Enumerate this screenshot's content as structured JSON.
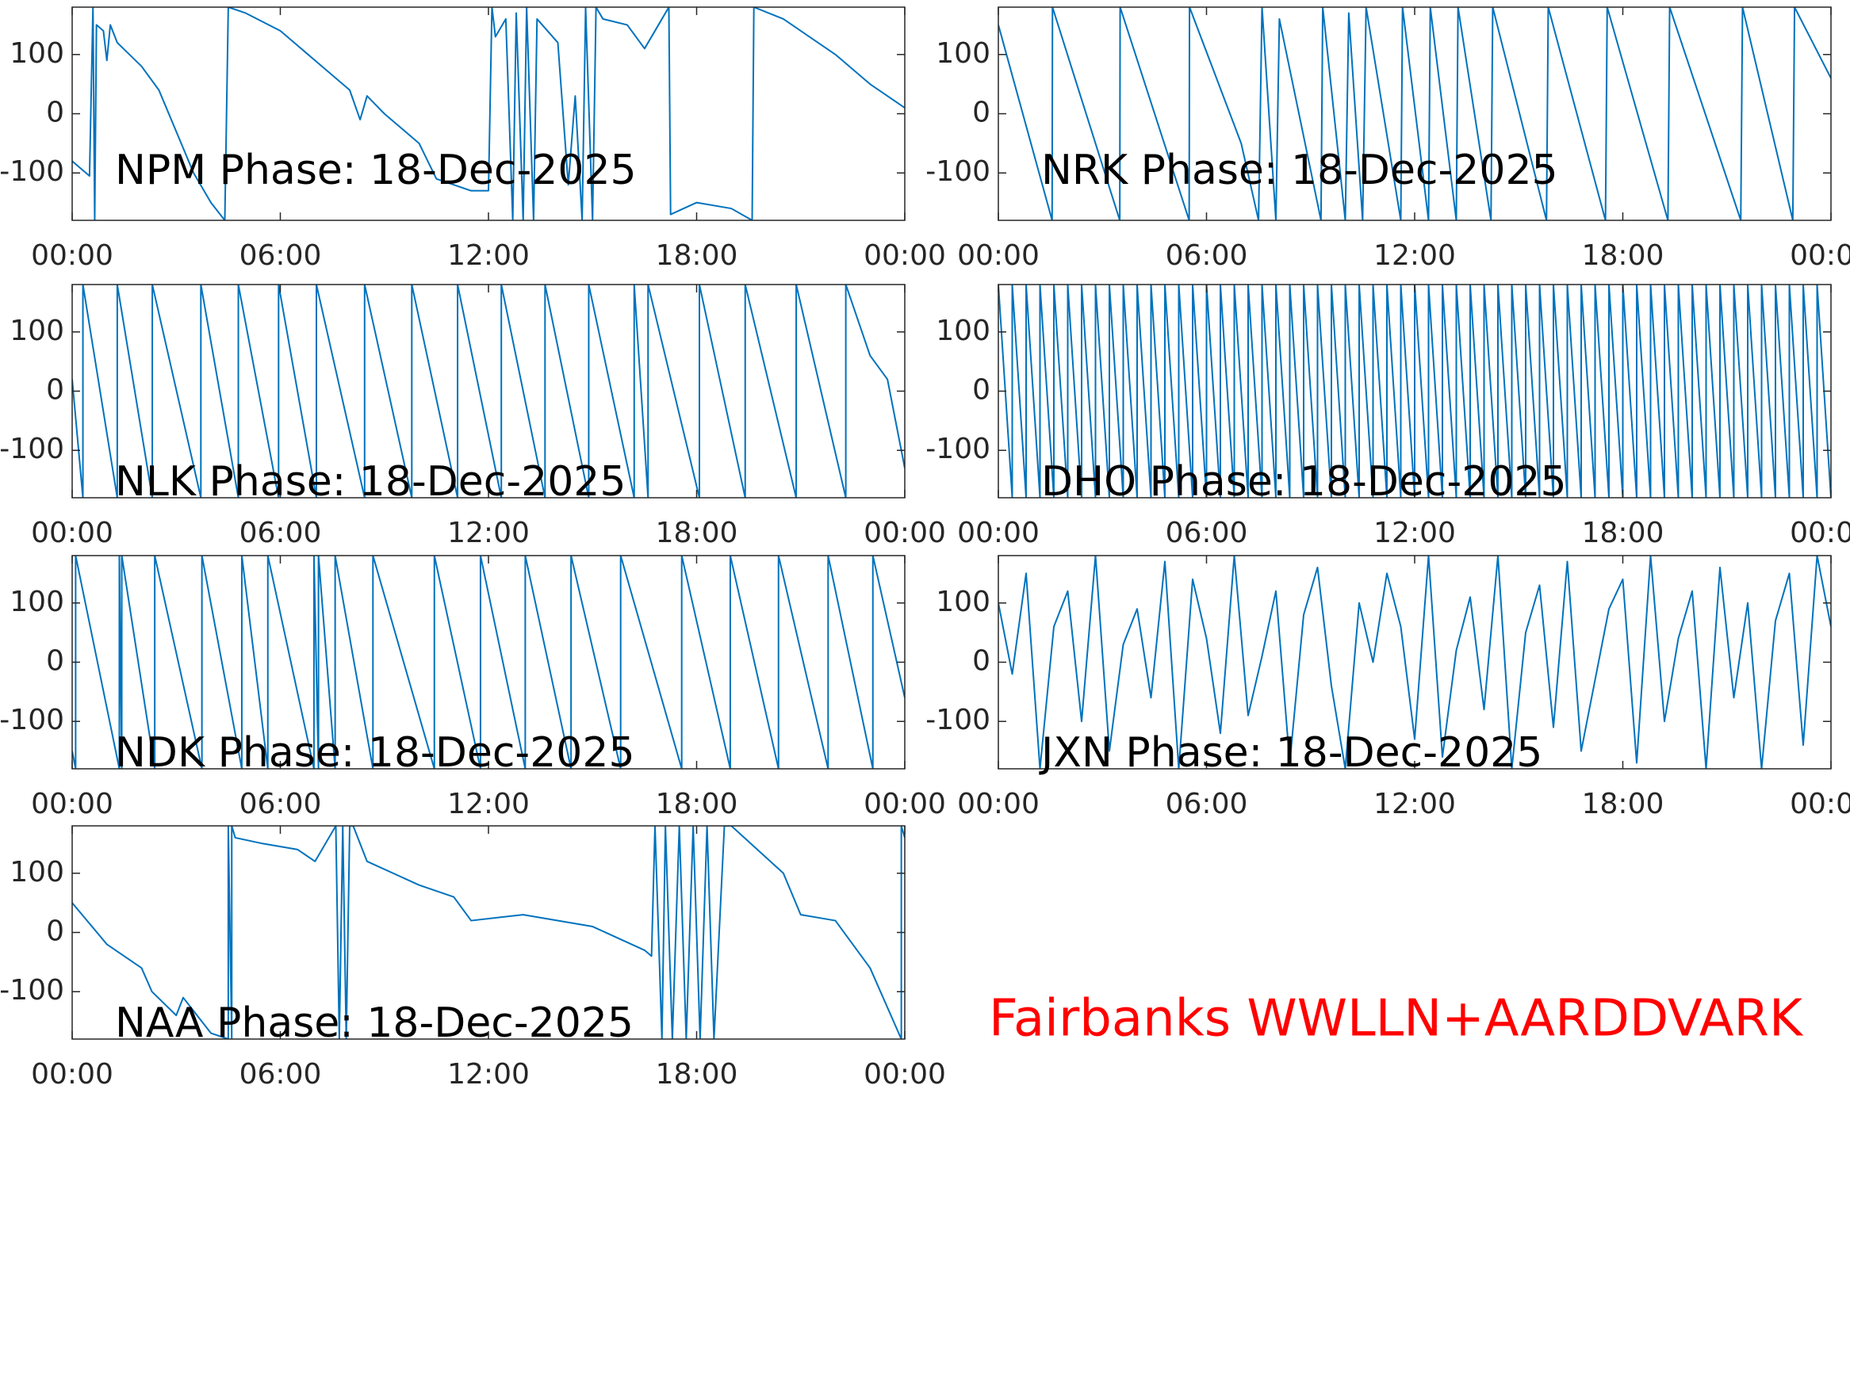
{
  "chart_data": [
    {
      "type": "line",
      "title": "NPM Phase: 18-Dec-2025",
      "color": "#0072bd",
      "x": [
        0,
        0.5,
        0.6,
        0.65,
        0.7,
        0.9,
        1,
        1.1,
        1.3,
        2,
        2.5,
        3,
        3.5,
        4,
        4.4,
        4.5,
        5,
        6,
        7,
        8,
        8.3,
        8.5,
        9,
        10,
        10.5,
        11,
        11.5,
        12,
        12.1,
        12.2,
        12.5,
        12.7,
        12.8,
        13,
        13.1,
        13.3,
        13.4,
        14,
        14.3,
        14.5,
        14.7,
        14.8,
        15,
        15.1,
        15.3,
        16,
        16.5,
        17,
        17.2,
        17.25,
        18,
        19,
        19.6,
        19.65,
        20.5,
        22,
        23,
        24
      ],
      "values": [
        -80,
        -105,
        180,
        -180,
        150,
        140,
        90,
        150,
        120,
        80,
        40,
        -30,
        -100,
        -150,
        -180,
        180,
        170,
        140,
        90,
        40,
        -10,
        30,
        0,
        -50,
        -110,
        -120,
        -130,
        -130,
        180,
        130,
        160,
        -180,
        170,
        -180,
        180,
        -180,
        160,
        120,
        -120,
        30,
        -180,
        180,
        -180,
        180,
        160,
        150,
        110,
        160,
        180,
        -170,
        -150,
        -160,
        -180,
        180,
        160,
        100,
        50,
        10
      ],
      "xlim": [
        0,
        24
      ],
      "ylim": [
        -180,
        180
      ],
      "xticks": [
        {
          "value": 0,
          "label": "00:00"
        },
        {
          "value": 6,
          "label": "06:00"
        },
        {
          "value": 12,
          "label": "12:00"
        },
        {
          "value": 18,
          "label": "18:00"
        },
        {
          "value": 24,
          "label": "00:00"
        }
      ],
      "yticks": [
        -100,
        0,
        100
      ]
    },
    {
      "type": "line",
      "title": "NRK Phase: 18-Dec-2025",
      "color": "#0072bd",
      "x": [
        0,
        1.55,
        1.56,
        3.5,
        3.51,
        5.5,
        5.51,
        7,
        7.5,
        7.6,
        8,
        8.1,
        9.3,
        9.35,
        10,
        10.1,
        10.5,
        10.6,
        11.6,
        11.65,
        12.4,
        12.45,
        13.2,
        13.25,
        14.2,
        14.25,
        15.8,
        15.85,
        17.5,
        17.55,
        19.3,
        19.35,
        21.4,
        21.45,
        22.9,
        22.95,
        24
      ],
      "values": [
        150,
        -180,
        180,
        -180,
        180,
        -180,
        180,
        -50,
        -180,
        180,
        -180,
        160,
        -180,
        180,
        -180,
        170,
        -180,
        180,
        -180,
        180,
        -180,
        180,
        -180,
        180,
        -180,
        180,
        -180,
        180,
        -180,
        180,
        -180,
        180,
        -180,
        180,
        -180,
        180,
        60
      ],
      "xlim": [
        0,
        24
      ],
      "ylim": [
        -180,
        180
      ],
      "xticks": [
        {
          "value": 0,
          "label": "00:00"
        },
        {
          "value": 6,
          "label": "06:00"
        },
        {
          "value": 12,
          "label": "12:00"
        },
        {
          "value": 18,
          "label": "18:00"
        },
        {
          "value": 24,
          "label": "00:00"
        }
      ],
      "yticks": [
        -100,
        0,
        100
      ]
    },
    {
      "type": "line",
      "title": "NLK Phase: 18-Dec-2025",
      "color": "#0072bd",
      "x": [
        0,
        0.31,
        0.31,
        1.3,
        1.3,
        2.31,
        2.31,
        3.71,
        3.71,
        4.79,
        4.79,
        5.95,
        5.95,
        7.04,
        7.04,
        8.43,
        8.43,
        9.79,
        9.79,
        11.11,
        11.11,
        12.37,
        12.37,
        13.63,
        13.63,
        14.89,
        14.89,
        16.2,
        16.2,
        16.6,
        16.6,
        18.08,
        18.08,
        19.4,
        19.4,
        20.87,
        20.87,
        22.3,
        22.3,
        23,
        23.5,
        24
      ],
      "values": [
        20,
        -180,
        180,
        -180,
        180,
        -180,
        180,
        -180,
        180,
        -180,
        180,
        -180,
        180,
        -180,
        180,
        -180,
        180,
        -180,
        180,
        -180,
        180,
        -180,
        180,
        -180,
        180,
        -180,
        180,
        -180,
        180,
        -180,
        180,
        -180,
        180,
        -180,
        180,
        -180,
        180,
        -180,
        180,
        60,
        20,
        -130
      ],
      "xlim": [
        0,
        24
      ],
      "ylim": [
        -180,
        180
      ],
      "xticks": [
        {
          "value": 0,
          "label": "00:00"
        },
        {
          "value": 6,
          "label": "06:00"
        },
        {
          "value": 12,
          "label": "12:00"
        },
        {
          "value": 18,
          "label": "18:00"
        },
        {
          "value": 24,
          "label": "00:00"
        }
      ],
      "yticks": [
        -100,
        0,
        100
      ]
    },
    {
      "type": "line",
      "title": "DHO Phase: 18-Dec-2025",
      "color": "#0072bd",
      "x": [
        0,
        0.4,
        0.4,
        0.8,
        0.8,
        1.2,
        1.2,
        1.6,
        1.6,
        2,
        2,
        2.4,
        2.4,
        2.8,
        2.8,
        3.2,
        3.2,
        3.6,
        3.6,
        4,
        4,
        4.4,
        4.4,
        4.8,
        4.8,
        5.2,
        5.2,
        5.6,
        5.6,
        6,
        6,
        6.4,
        6.4,
        6.8,
        6.8,
        7.2,
        7.2,
        7.6,
        7.6,
        8,
        8,
        8.4,
        8.4,
        8.8,
        8.8,
        9.2,
        9.2,
        9.6,
        9.6,
        10,
        10,
        10.4,
        10.4,
        10.8,
        10.8,
        11.2,
        11.2,
        11.6,
        11.6,
        12,
        12,
        12.4,
        12.4,
        12.8,
        12.8,
        13.2,
        13.2,
        13.6,
        13.6,
        14,
        14,
        14.4,
        14.4,
        14.8,
        14.8,
        15.2,
        15.2,
        15.6,
        15.6,
        16,
        16,
        16.4,
        16.4,
        16.8,
        16.8,
        17.2,
        17.2,
        17.6,
        17.6,
        18,
        18,
        18.4,
        18.4,
        18.8,
        18.8,
        19.2,
        19.2,
        19.6,
        19.6,
        20,
        20,
        20.4,
        20.4,
        20.8,
        20.8,
        21.2,
        21.2,
        21.6,
        21.6,
        22,
        22,
        22.4,
        22.4,
        22.8,
        22.8,
        23.2,
        23.2,
        23.6,
        23.6,
        24
      ],
      "values": [
        180,
        -180,
        180,
        -180,
        180,
        -180,
        180,
        -180,
        180,
        -180,
        180,
        -180,
        180,
        -180,
        180,
        -180,
        180,
        -180,
        180,
        -180,
        180,
        -180,
        180,
        -180,
        180,
        -180,
        180,
        -180,
        180,
        -180,
        180,
        -180,
        180,
        -180,
        180,
        -180,
        180,
        -180,
        180,
        -180,
        180,
        -180,
        180,
        -180,
        180,
        -180,
        180,
        -180,
        180,
        -180,
        180,
        -180,
        180,
        -180,
        180,
        -180,
        180,
        -180,
        180,
        -180,
        180,
        -180,
        180,
        -180,
        180,
        -180,
        180,
        -180,
        180,
        -180,
        180,
        -180,
        180,
        -180,
        180,
        -180,
        180,
        -180,
        180,
        -180,
        180,
        -180,
        180,
        -180,
        180,
        -180,
        180,
        -180,
        180,
        -180,
        180,
        -180,
        180,
        -180,
        180,
        -180,
        180,
        -180,
        180,
        -180,
        180,
        -180,
        180,
        -180,
        180,
        -180,
        180,
        -180,
        180,
        -180,
        180,
        -180,
        180,
        -180,
        180,
        -180,
        180,
        -180,
        180,
        -180
      ],
      "xlim": [
        0,
        24
      ],
      "ylim": [
        -180,
        180
      ],
      "xticks": [
        {
          "value": 0,
          "label": "00:00"
        },
        {
          "value": 6,
          "label": "06:00"
        },
        {
          "value": 12,
          "label": "12:00"
        },
        {
          "value": 18,
          "label": "18:00"
        },
        {
          "value": 24,
          "label": "00:00"
        }
      ],
      "yticks": [
        -100,
        0,
        100
      ]
    },
    {
      "type": "line",
      "title": "NDK Phase: 18-Dec-2025",
      "color": "#0072bd",
      "x": [
        0,
        0.1,
        0.1,
        1.36,
        1.36,
        1.43,
        1.43,
        2.38,
        2.38,
        3.74,
        3.74,
        4.89,
        4.89,
        5.64,
        5.64,
        6.97,
        6.97,
        7.1,
        7.1,
        7.58,
        7.58,
        8.67,
        8.67,
        10.44,
        10.44,
        11.77,
        11.77,
        13.06,
        13.06,
        14.38,
        14.38,
        15.81,
        15.81,
        17.57,
        17.57,
        18.97,
        18.97,
        20.36,
        20.36,
        21.79,
        21.79,
        23.08,
        23.08,
        24
      ],
      "values": [
        -150,
        -180,
        180,
        -180,
        180,
        -180,
        180,
        -180,
        180,
        -180,
        180,
        -180,
        180,
        -180,
        180,
        -180,
        180,
        -180,
        180,
        -180,
        180,
        -180,
        180,
        -180,
        180,
        -180,
        180,
        -180,
        180,
        -180,
        180,
        -180,
        180,
        -180,
        180,
        -180,
        180,
        -180,
        180,
        -180,
        180,
        -180,
        180,
        -60
      ],
      "xlim": [
        0,
        24
      ],
      "ylim": [
        -180,
        180
      ],
      "xticks": [
        {
          "value": 0,
          "label": "00:00"
        },
        {
          "value": 6,
          "label": "06:00"
        },
        {
          "value": 12,
          "label": "12:00"
        },
        {
          "value": 18,
          "label": "18:00"
        },
        {
          "value": 24,
          "label": "00:00"
        }
      ],
      "yticks": [
        -100,
        0,
        100
      ]
    },
    {
      "type": "line",
      "title": "JXN Phase: 18-Dec-2025",
      "color": "#0072bd",
      "x": [
        0,
        0.4,
        0.8,
        1.2,
        1.6,
        2,
        2.4,
        2.8,
        3.2,
        3.6,
        4,
        4.4,
        4.8,
        5.2,
        5.6,
        6,
        6.4,
        6.8,
        7.2,
        7.6,
        8,
        8.4,
        8.8,
        9.2,
        9.6,
        10,
        10.4,
        10.8,
        11.2,
        11.6,
        12,
        12.4,
        12.8,
        13.2,
        13.6,
        14,
        14.4,
        14.8,
        15.2,
        15.6,
        16,
        16.4,
        16.8,
        17.2,
        17.6,
        18,
        18.4,
        18.8,
        19.2,
        19.6,
        20,
        20.4,
        20.8,
        21.2,
        21.6,
        22,
        22.4,
        22.8,
        23.2,
        23.6,
        24
      ],
      "values": [
        100,
        -20,
        150,
        -180,
        60,
        120,
        -100,
        180,
        -150,
        30,
        90,
        -60,
        170,
        -180,
        140,
        40,
        -120,
        180,
        -90,
        10,
        120,
        -170,
        80,
        160,
        -40,
        -180,
        100,
        0,
        150,
        60,
        -130,
        180,
        -160,
        20,
        110,
        -80,
        180,
        -180,
        50,
        130,
        -110,
        170,
        -150,
        -30,
        90,
        140,
        -170,
        180,
        -100,
        40,
        120,
        -180,
        160,
        -60,
        100,
        -180,
        70,
        150,
        -140,
        180,
        60
      ],
      "xlim": [
        0,
        24
      ],
      "ylim": [
        -180,
        180
      ],
      "xticks": [
        {
          "value": 0,
          "label": "00:00"
        },
        {
          "value": 6,
          "label": "06:00"
        },
        {
          "value": 12,
          "label": "12:00"
        },
        {
          "value": 18,
          "label": "18:00"
        },
        {
          "value": 24,
          "label": "00:00"
        }
      ],
      "yticks": [
        -100,
        0,
        100
      ]
    },
    {
      "type": "line",
      "title": "NAA Phase: 18-Dec-2025",
      "color": "#0072bd",
      "x": [
        0,
        1,
        2,
        2.3,
        3,
        3.2,
        4,
        4.5,
        4.5,
        4.6,
        4.6,
        4.7,
        5.5,
        6.5,
        7,
        7.6,
        7.7,
        7.8,
        7.9,
        8,
        8.1,
        8.5,
        10,
        11,
        11.5,
        13,
        15,
        16.5,
        16.7,
        16.8,
        17,
        17.1,
        17.3,
        17.5,
        17.7,
        17.9,
        18.1,
        18.3,
        18.5,
        18.8,
        19,
        20.5,
        21,
        22,
        23,
        23.9,
        23.9,
        24
      ],
      "values": [
        50,
        -20,
        -60,
        -100,
        -140,
        -110,
        -170,
        -180,
        180,
        -180,
        180,
        160,
        150,
        140,
        120,
        180,
        -180,
        180,
        -180,
        180,
        180,
        120,
        80,
        60,
        20,
        30,
        10,
        -30,
        -40,
        180,
        -180,
        180,
        -180,
        180,
        -180,
        180,
        -180,
        180,
        -180,
        180,
        180,
        100,
        30,
        20,
        -60,
        -180,
        180,
        160
      ],
      "xlim": [
        0,
        24
      ],
      "ylim": [
        -180,
        180
      ],
      "xticks": [
        {
          "value": 0,
          "label": "00:00"
        },
        {
          "value": 6,
          "label": "06:00"
        },
        {
          "value": 12,
          "label": "12:00"
        },
        {
          "value": 18,
          "label": "18:00"
        },
        {
          "value": 24,
          "label": "00:00"
        }
      ],
      "yticks": [
        -100,
        0,
        100
      ]
    }
  ],
  "annotation": {
    "text": "Fairbanks WWLLN+AARDDVARK",
    "color": "#ff0000"
  }
}
